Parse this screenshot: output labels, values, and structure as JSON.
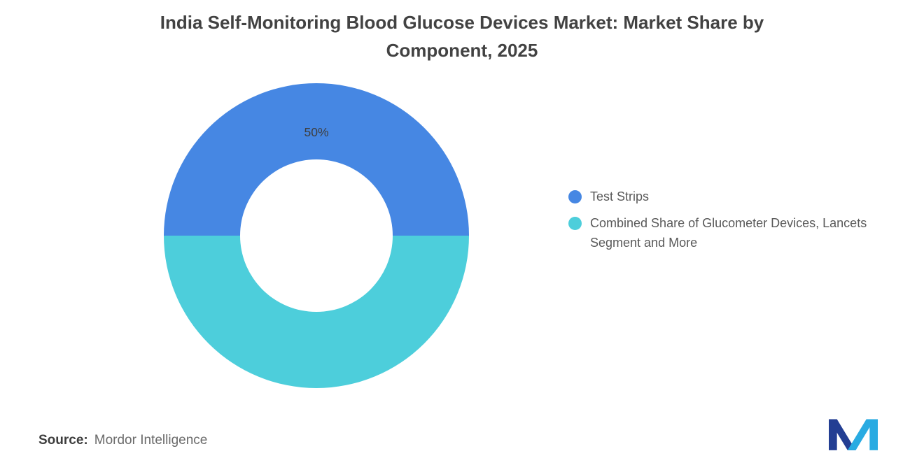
{
  "title": {
    "line1": "India Self-Monitoring Blood Glucose Devices Market: Market Share by",
    "line2": "Component, 2025"
  },
  "chart_data": {
    "type": "pie",
    "subtype": "donut",
    "title": "India Self-Monitoring Blood Glucose Devices Market: Market Share by Component, 2025",
    "categories": [
      "Test Strips",
      "Combined Share of Glucometer Devices, Lancets Segment and More"
    ],
    "values": [
      50,
      50
    ],
    "slices": [
      {
        "label": "Test Strips",
        "value": 50,
        "color": "#4687E3",
        "data_label": "50%"
      },
      {
        "label": "Combined Share of Glucometer Devices, Lancets Segment and More",
        "value": 50,
        "color": "#4DCEDB",
        "data_label": ""
      }
    ],
    "inner_radius_ratio": 0.5,
    "start_orientation": "west-clockwise",
    "legend_position": "right",
    "data_label_color": "#3e3e3e"
  },
  "legend": {
    "items": [
      {
        "label": "Test Strips",
        "color": "#4687E3"
      },
      {
        "label": "Combined Share of Glucometer Devices, Lancets Segment and More",
        "color": "#4DCEDB"
      }
    ]
  },
  "source": {
    "label": "Source:",
    "text": "Mordor Intelligence"
  },
  "logo": {
    "name": "Mordor Intelligence",
    "color_dark": "#233E93",
    "color_light": "#29ABE2"
  }
}
